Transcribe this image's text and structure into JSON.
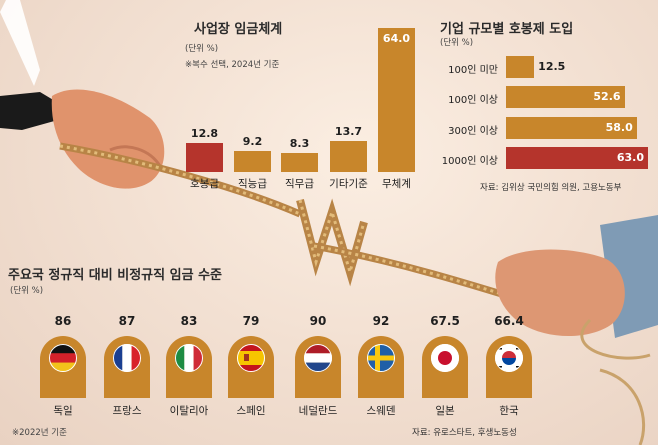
{
  "colors": {
    "gold": "#c8862b",
    "red": "#b5342c",
    "flag_card": "#c8862b"
  },
  "chart_data": [
    {
      "type": "bar",
      "title": "사업장 임금체계",
      "unit_label": "(단위 %)",
      "note": "※복수 선택, 2024년 기준",
      "categories": [
        "호봉급",
        "직능급",
        "직무급",
        "기타기준",
        "무체계"
      ],
      "values": [
        12.8,
        9.2,
        8.3,
        13.7,
        64.0
      ],
      "value_labels": [
        "12.8",
        "9.2",
        "8.3",
        "13.7",
        "64.0"
      ],
      "highlight": [
        true,
        false,
        false,
        false,
        false
      ],
      "ylim": [
        0,
        64
      ]
    },
    {
      "type": "bar",
      "orientation": "horizontal",
      "title": "기업 규모별 호봉제 도입",
      "unit_label": "(단위 %)",
      "categories": [
        "100인 미만",
        "100인 이상",
        "300인 이상",
        "1000인 이상"
      ],
      "values": [
        12.5,
        52.6,
        58.0,
        63.0
      ],
      "value_labels": [
        "12.5",
        "52.6",
        "58.0",
        "63.0"
      ],
      "highlight": [
        false,
        false,
        false,
        true
      ],
      "source": "자료: 김위상 국민의힘 의원, 고용노동부",
      "xlim": [
        0,
        63
      ]
    },
    {
      "type": "bar",
      "title": "주요국 정규직 대비 비정규직 임금 수준",
      "unit_label": "(단위 %)",
      "note": "※2022년 기준",
      "categories": [
        "독일",
        "프랑스",
        "이탈리아",
        "스페인",
        "네덜란드",
        "스웨덴",
        "일본",
        "한국"
      ],
      "values": [
        86,
        87,
        83,
        79,
        90,
        92,
        67.5,
        66.4
      ],
      "value_labels": [
        "86",
        "87",
        "83",
        "79",
        "90",
        "92",
        "67.5",
        "66.4"
      ],
      "flags": [
        "germany-flag",
        "france-flag",
        "italy-flag",
        "spain-flag",
        "netherlands-flag",
        "sweden-flag",
        "japan-flag",
        "korea-flag"
      ],
      "source": "자료: 유로스타트, 후생노동성"
    }
  ]
}
